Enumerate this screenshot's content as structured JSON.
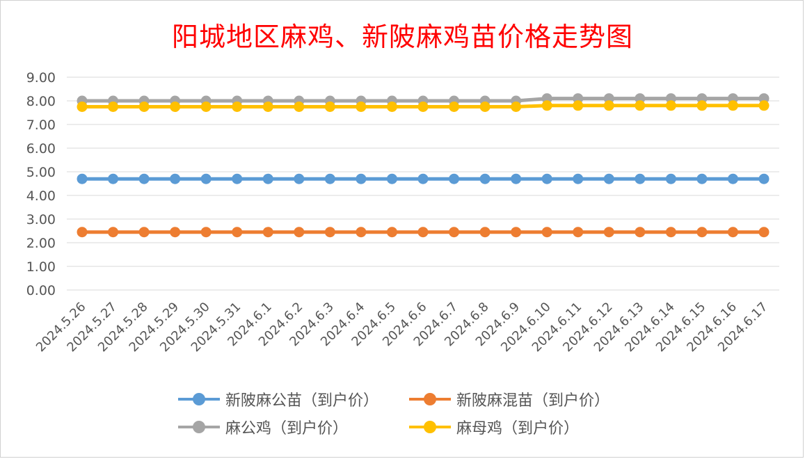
{
  "chart_data": {
    "type": "line",
    "title": "阳城地区麻鸡、新陂麻鸡苗价格走势图",
    "xlabel": "",
    "ylabel": "",
    "ylim": [
      0,
      9
    ],
    "y_ticks": [
      "0.00",
      "1.00",
      "2.00",
      "3.00",
      "4.00",
      "5.00",
      "6.00",
      "7.00",
      "8.00",
      "9.00"
    ],
    "grid": true,
    "legend_position": "bottom",
    "categories": [
      "2024.5.26",
      "2024.5.27",
      "2024.5.28",
      "2024.5.29",
      "2024.5.30",
      "2024.5.31",
      "2024.6.1",
      "2024.6.2",
      "2024.6.3",
      "2024.6.4",
      "2024.6.5",
      "2024.6.6",
      "2024.6.7",
      "2024.6.8",
      "2024.6.9",
      "2024.6.10",
      "2024.6.11",
      "2024.6.12",
      "2024.6.13",
      "2024.6.14",
      "2024.6.15",
      "2024.6.16",
      "2024.6.17"
    ],
    "series": [
      {
        "name": "新陂麻公苗（到户价）",
        "color": "#5b9bd5",
        "values": [
          4.7,
          4.7,
          4.7,
          4.7,
          4.7,
          4.7,
          4.7,
          4.7,
          4.7,
          4.7,
          4.7,
          4.7,
          4.7,
          4.7,
          4.7,
          4.7,
          4.7,
          4.7,
          4.7,
          4.7,
          4.7,
          4.7,
          4.7
        ]
      },
      {
        "name": "新陂麻混苗（到户价）",
        "color": "#ed7d31",
        "values": [
          2.45,
          2.45,
          2.45,
          2.45,
          2.45,
          2.45,
          2.45,
          2.45,
          2.45,
          2.45,
          2.45,
          2.45,
          2.45,
          2.45,
          2.45,
          2.45,
          2.45,
          2.45,
          2.45,
          2.45,
          2.45,
          2.45,
          2.45
        ]
      },
      {
        "name": "麻公鸡（到户价）",
        "color": "#a5a5a5",
        "values": [
          8.0,
          8.0,
          8.0,
          8.0,
          8.0,
          8.0,
          8.0,
          8.0,
          8.0,
          8.0,
          8.0,
          8.0,
          8.0,
          8.0,
          8.0,
          8.1,
          8.1,
          8.1,
          8.1,
          8.1,
          8.1,
          8.1,
          8.1
        ]
      },
      {
        "name": "麻母鸡（到户价）",
        "color": "#ffc000",
        "values": [
          7.75,
          7.75,
          7.75,
          7.75,
          7.75,
          7.75,
          7.75,
          7.75,
          7.75,
          7.75,
          7.75,
          7.75,
          7.75,
          7.75,
          7.75,
          7.8,
          7.8,
          7.8,
          7.8,
          7.8,
          7.8,
          7.8,
          7.8
        ]
      }
    ]
  }
}
